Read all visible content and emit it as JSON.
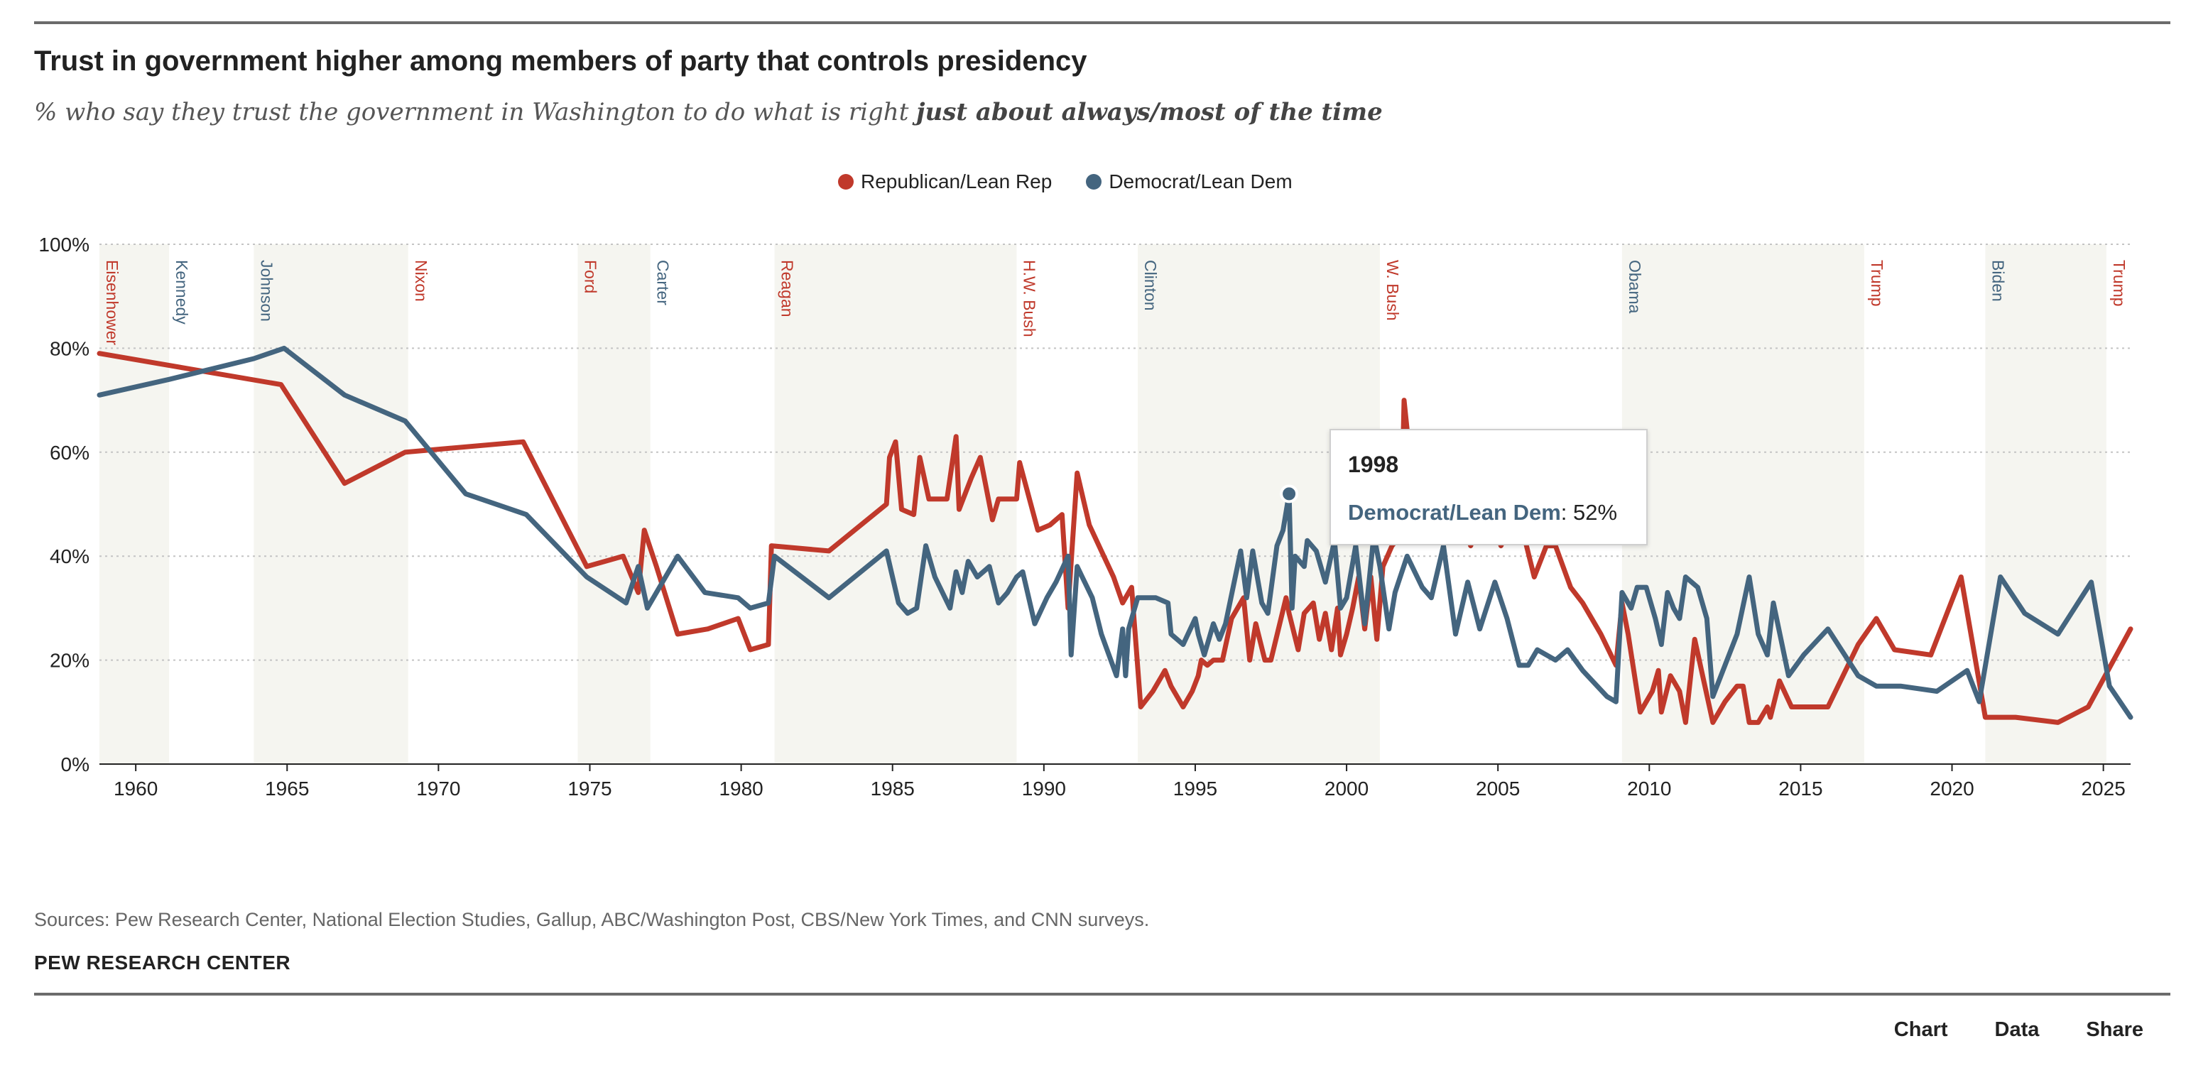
{
  "header": {
    "title": "Trust in government higher among members of party that controls presidency",
    "subtitle_prefix": "% who say they trust the government in Washington to do what is right ",
    "subtitle_emphasis": "just about always/most of the time"
  },
  "legend": [
    {
      "label": "Republican/Lean Rep",
      "color": "#c0392b"
    },
    {
      "label": "Democrat/Lean Dem",
      "color": "#44657f"
    }
  ],
  "tooltip": {
    "year": "1998",
    "series": "Democrat/Lean Dem",
    "sep": ": ",
    "value": "52%"
  },
  "footer": {
    "source": "Sources: Pew Research Center, National Election Studies, Gallup, ABC/Washington Post, CBS/New York Times, and CNN surveys.",
    "brand": "PEW RESEARCH CENTER",
    "tabs": [
      "Chart",
      "Data",
      "Share"
    ]
  },
  "chart_data": {
    "type": "line",
    "title": "Trust in government higher among members of party that controls presidency",
    "xlim": [
      1958.8,
      2025.9
    ],
    "ylim": [
      0,
      100
    ],
    "x_ticks": [
      1960,
      1965,
      1970,
      1975,
      1980,
      1985,
      1990,
      1995,
      2000,
      2005,
      2010,
      2015,
      2020,
      2025
    ],
    "y_ticks": [
      0,
      20,
      40,
      60,
      80,
      100
    ],
    "y_tick_labels": [
      "0%",
      "20%",
      "40%",
      "60%",
      "80%",
      "100%"
    ],
    "grid": "horizontal dotted",
    "legend_position": "top-center",
    "presidencies": [
      {
        "name": "Eisenhower",
        "party": "R",
        "start": 1958.8,
        "end": 1961.1,
        "shaded": true
      },
      {
        "name": "Kennedy",
        "party": "D",
        "start": 1961.1,
        "end": 1963.9,
        "shaded": false
      },
      {
        "name": "Johnson",
        "party": "D",
        "start": 1963.9,
        "end": 1969.0,
        "shaded": true
      },
      {
        "name": "Nixon",
        "party": "R",
        "start": 1969.0,
        "end": 1974.6,
        "shaded": false
      },
      {
        "name": "Ford",
        "party": "R",
        "start": 1974.6,
        "end": 1977.0,
        "shaded": true
      },
      {
        "name": "Carter",
        "party": "D",
        "start": 1977.0,
        "end": 1981.1,
        "shaded": false
      },
      {
        "name": "Reagan",
        "party": "R",
        "start": 1981.1,
        "end": 1989.1,
        "shaded": true
      },
      {
        "name": "H.W. Bush",
        "party": "R",
        "start": 1989.1,
        "end": 1993.1,
        "shaded": false
      },
      {
        "name": "Clinton",
        "party": "D",
        "start": 1993.1,
        "end": 2001.1,
        "shaded": true
      },
      {
        "name": "W. Bush",
        "party": "R",
        "start": 2001.1,
        "end": 2009.1,
        "shaded": false
      },
      {
        "name": "Obama",
        "party": "D",
        "start": 2009.1,
        "end": 2017.1,
        "shaded": true
      },
      {
        "name": "Trump",
        "party": "R",
        "start": 2017.1,
        "end": 2021.1,
        "shaded": false
      },
      {
        "name": "Biden",
        "party": "D",
        "start": 2021.1,
        "end": 2025.1,
        "shaded": true
      },
      {
        "name": "Trump",
        "party": "R",
        "start": 2025.1,
        "end": 2025.9,
        "shaded": false
      }
    ],
    "series": [
      {
        "name": "Republican/Lean Rep",
        "color": "#c0392b",
        "points": [
          [
            1958.8,
            79
          ],
          [
            1964.8,
            73
          ],
          [
            1966.9,
            54
          ],
          [
            1968.9,
            60
          ],
          [
            1972.8,
            62
          ],
          [
            1974.9,
            38
          ],
          [
            1976.1,
            40
          ],
          [
            1976.6,
            33
          ],
          [
            1976.8,
            45
          ],
          [
            1977.2,
            38
          ],
          [
            1977.9,
            25
          ],
          [
            1978.9,
            26
          ],
          [
            1979.9,
            28
          ],
          [
            1980.3,
            22
          ],
          [
            1980.9,
            23
          ],
          [
            1981.0,
            42
          ],
          [
            1982.9,
            41
          ],
          [
            1984.8,
            50
          ],
          [
            1984.9,
            59
          ],
          [
            1985.1,
            62
          ],
          [
            1985.3,
            49
          ],
          [
            1985.7,
            48
          ],
          [
            1985.9,
            59
          ],
          [
            1986.2,
            51
          ],
          [
            1986.8,
            51
          ],
          [
            1987.1,
            63
          ],
          [
            1987.2,
            49
          ],
          [
            1987.6,
            55
          ],
          [
            1987.9,
            59
          ],
          [
            1988.3,
            47
          ],
          [
            1988.5,
            51
          ],
          [
            1989.1,
            51
          ],
          [
            1989.2,
            58
          ],
          [
            1989.8,
            45
          ],
          [
            1990.2,
            46
          ],
          [
            1990.6,
            48
          ],
          [
            1990.8,
            30
          ],
          [
            1991.1,
            56
          ],
          [
            1991.5,
            46
          ],
          [
            1991.9,
            41
          ],
          [
            1992.3,
            36
          ],
          [
            1992.6,
            31
          ],
          [
            1992.9,
            34
          ],
          [
            1993.2,
            11
          ],
          [
            1993.6,
            14
          ],
          [
            1993.9,
            17
          ],
          [
            1994.0,
            18
          ],
          [
            1994.2,
            15
          ],
          [
            1994.6,
            11
          ],
          [
            1994.9,
            14
          ],
          [
            1995.1,
            17
          ],
          [
            1995.2,
            20
          ],
          [
            1995.4,
            19
          ],
          [
            1995.6,
            20
          ],
          [
            1995.9,
            20
          ],
          [
            1996.2,
            28
          ],
          [
            1996.6,
            32
          ],
          [
            1996.8,
            20
          ],
          [
            1997.0,
            27
          ],
          [
            1997.3,
            20
          ],
          [
            1997.5,
            20
          ],
          [
            1998.0,
            32
          ],
          [
            1998.1,
            29
          ],
          [
            1998.4,
            22
          ],
          [
            1998.6,
            29
          ],
          [
            1998.9,
            31
          ],
          [
            1999.1,
            24
          ],
          [
            1999.3,
            29
          ],
          [
            1999.5,
            22
          ],
          [
            1999.7,
            30
          ],
          [
            1999.8,
            21
          ],
          [
            2000.0,
            25
          ],
          [
            2000.2,
            30
          ],
          [
            2000.4,
            36
          ],
          [
            2000.6,
            26
          ],
          [
            2000.8,
            36
          ],
          [
            2001.0,
            24
          ],
          [
            2001.2,
            38
          ],
          [
            2001.5,
            42
          ],
          [
            2001.8,
            44
          ],
          [
            2001.9,
            70
          ],
          [
            2002.2,
            53
          ],
          [
            2002.6,
            52
          ],
          [
            2002.9,
            49
          ],
          [
            2003.3,
            44
          ],
          [
            2003.7,
            48
          ],
          [
            2004.1,
            42
          ],
          [
            2004.6,
            50
          ],
          [
            2005.1,
            42
          ],
          [
            2005.5,
            47
          ],
          [
            2005.9,
            43
          ],
          [
            2006.2,
            36
          ],
          [
            2006.6,
            42
          ],
          [
            2006.9,
            42
          ],
          [
            2007.4,
            34
          ],
          [
            2007.8,
            31
          ],
          [
            2008.4,
            25
          ],
          [
            2008.9,
            19
          ],
          [
            2009.1,
            31
          ],
          [
            2009.3,
            25
          ],
          [
            2009.7,
            10
          ],
          [
            2010.1,
            14
          ],
          [
            2010.3,
            18
          ],
          [
            2010.4,
            10
          ],
          [
            2010.7,
            17
          ],
          [
            2010.8,
            16
          ],
          [
            2011.0,
            14
          ],
          [
            2011.2,
            8
          ],
          [
            2011.5,
            24
          ],
          [
            2011.8,
            16
          ],
          [
            2012.1,
            8
          ],
          [
            2012.5,
            12
          ],
          [
            2012.9,
            15
          ],
          [
            2013.1,
            15
          ],
          [
            2013.3,
            8
          ],
          [
            2013.6,
            8
          ],
          [
            2013.9,
            11
          ],
          [
            2014.0,
            9
          ],
          [
            2014.3,
            16
          ],
          [
            2014.7,
            11
          ],
          [
            2015.3,
            11
          ],
          [
            2015.9,
            11
          ],
          [
            2016.9,
            23
          ],
          [
            2017.5,
            28
          ],
          [
            2018.1,
            22
          ],
          [
            2019.3,
            21
          ],
          [
            2020.3,
            36
          ],
          [
            2021.1,
            9
          ],
          [
            2022.1,
            9
          ],
          [
            2023.5,
            8
          ],
          [
            2024.5,
            11
          ],
          [
            2025.9,
            26
          ]
        ]
      },
      {
        "name": "Democrat/Lean Dem",
        "color": "#44657f",
        "points": [
          [
            1958.8,
            71
          ],
          [
            1961.1,
            74
          ],
          [
            1963.9,
            78
          ],
          [
            1964.9,
            80
          ],
          [
            1966.9,
            71
          ],
          [
            1968.9,
            66
          ],
          [
            1970.9,
            52
          ],
          [
            1972.9,
            48
          ],
          [
            1974.9,
            36
          ],
          [
            1976.2,
            31
          ],
          [
            1976.6,
            38
          ],
          [
            1976.9,
            30
          ],
          [
            1977.9,
            40
          ],
          [
            1978.8,
            33
          ],
          [
            1979.9,
            32
          ],
          [
            1980.3,
            30
          ],
          [
            1980.9,
            31
          ],
          [
            1981.1,
            40
          ],
          [
            1982.9,
            32
          ],
          [
            1984.8,
            41
          ],
          [
            1985.2,
            31
          ],
          [
            1985.5,
            29
          ],
          [
            1985.8,
            30
          ],
          [
            1986.1,
            42
          ],
          [
            1986.4,
            36
          ],
          [
            1986.9,
            30
          ],
          [
            1987.1,
            37
          ],
          [
            1987.3,
            33
          ],
          [
            1987.5,
            39
          ],
          [
            1987.8,
            36
          ],
          [
            1988.2,
            38
          ],
          [
            1988.5,
            31
          ],
          [
            1988.8,
            33
          ],
          [
            1989.1,
            36
          ],
          [
            1989.3,
            37
          ],
          [
            1989.7,
            27
          ],
          [
            1990.1,
            32
          ],
          [
            1990.4,
            35
          ],
          [
            1990.8,
            40
          ],
          [
            1990.9,
            21
          ],
          [
            1991.1,
            38
          ],
          [
            1991.6,
            32
          ],
          [
            1991.9,
            25
          ],
          [
            1992.4,
            17
          ],
          [
            1992.6,
            26
          ],
          [
            1992.7,
            17
          ],
          [
            1992.8,
            26
          ],
          [
            1993.1,
            32
          ],
          [
            1993.7,
            32
          ],
          [
            1994.1,
            31
          ],
          [
            1994.2,
            25
          ],
          [
            1994.6,
            23
          ],
          [
            1995.0,
            28
          ],
          [
            1995.1,
            25
          ],
          [
            1995.3,
            21
          ],
          [
            1995.6,
            27
          ],
          [
            1995.8,
            24
          ],
          [
            1996.0,
            27
          ],
          [
            1996.5,
            41
          ],
          [
            1996.7,
            32
          ],
          [
            1996.9,
            41
          ],
          [
            1997.2,
            31
          ],
          [
            1997.4,
            29
          ],
          [
            1997.7,
            42
          ],
          [
            1997.9,
            45
          ],
          [
            1998.1,
            52
          ],
          [
            1998.2,
            30
          ],
          [
            1998.3,
            40
          ],
          [
            1998.6,
            38
          ],
          [
            1998.7,
            43
          ],
          [
            1999.0,
            41
          ],
          [
            1999.3,
            35
          ],
          [
            1999.6,
            43
          ],
          [
            1999.8,
            30
          ],
          [
            2000.0,
            32
          ],
          [
            2000.3,
            42
          ],
          [
            2000.6,
            27
          ],
          [
            2000.9,
            44
          ],
          [
            2001.1,
            38
          ],
          [
            2001.4,
            26
          ],
          [
            2001.6,
            33
          ],
          [
            2002.0,
            40
          ],
          [
            2002.5,
            34
          ],
          [
            2002.8,
            32
          ],
          [
            2003.2,
            42
          ],
          [
            2003.6,
            25
          ],
          [
            2004.0,
            35
          ],
          [
            2004.4,
            26
          ],
          [
            2004.9,
            35
          ],
          [
            2005.3,
            28
          ],
          [
            2005.7,
            19
          ],
          [
            2006.0,
            19
          ],
          [
            2006.3,
            22
          ],
          [
            2006.9,
            20
          ],
          [
            2007.3,
            22
          ],
          [
            2007.8,
            18
          ],
          [
            2008.6,
            13
          ],
          [
            2008.9,
            12
          ],
          [
            2009.1,
            33
          ],
          [
            2009.4,
            30
          ],
          [
            2009.6,
            34
          ],
          [
            2009.9,
            34
          ],
          [
            2010.2,
            28
          ],
          [
            2010.4,
            23
          ],
          [
            2010.6,
            33
          ],
          [
            2010.8,
            30
          ],
          [
            2011.0,
            28
          ],
          [
            2011.2,
            36
          ],
          [
            2011.6,
            34
          ],
          [
            2011.9,
            28
          ],
          [
            2012.1,
            13
          ],
          [
            2012.5,
            19
          ],
          [
            2012.9,
            25
          ],
          [
            2013.3,
            36
          ],
          [
            2013.6,
            25
          ],
          [
            2013.9,
            21
          ],
          [
            2014.1,
            31
          ],
          [
            2014.6,
            17
          ],
          [
            2015.1,
            21
          ],
          [
            2015.9,
            26
          ],
          [
            2016.9,
            17
          ],
          [
            2017.5,
            15
          ],
          [
            2018.3,
            15
          ],
          [
            2019.5,
            14
          ],
          [
            2020.5,
            18
          ],
          [
            2020.9,
            12
          ],
          [
            2021.6,
            36
          ],
          [
            2022.4,
            29
          ],
          [
            2023.5,
            25
          ],
          [
            2024.6,
            35
          ],
          [
            2025.2,
            15
          ],
          [
            2025.9,
            9
          ]
        ]
      }
    ],
    "highlight": {
      "series": "Democrat/Lean Dem",
      "x": 1998.1,
      "y": 52
    }
  }
}
